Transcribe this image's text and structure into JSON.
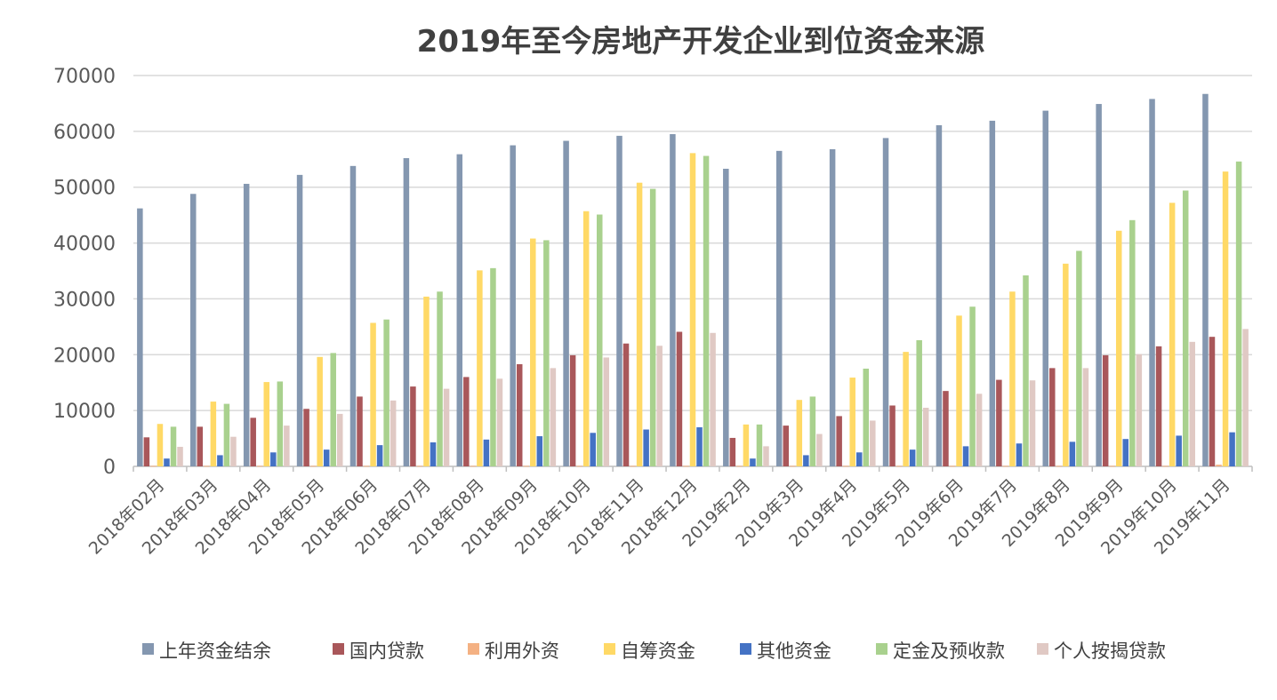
{
  "chart_data": {
    "type": "bar",
    "title": "2019年至今房地产开发企业到位资金来源",
    "xlabel": "",
    "ylabel": "",
    "ylim": [
      0,
      70000
    ],
    "yticks": [
      "0",
      "10000",
      "20000",
      "30000",
      "40000",
      "50000",
      "60000",
      "70000"
    ],
    "grid": true,
    "legend_position": "bottom",
    "categories": [
      "2018年02月",
      "2018年03月",
      "2018年04月",
      "2018年05月",
      "2018年06月",
      "2018年07月",
      "2018年08月",
      "2018年09月",
      "2018年10月",
      "2018年11月",
      "2018年12月",
      "2019年2月",
      "2019年3月",
      "2019年4月",
      "2019年5月",
      "2019年6月",
      "2019年7月",
      "2019年8月",
      "2019年9月",
      "2019年10月",
      "2019年11月"
    ],
    "series": [
      {
        "name": "上年资金结余",
        "color": "#8497B0",
        "values": [
          46200,
          48800,
          50600,
          52200,
          53800,
          55200,
          55900,
          57500,
          58300,
          59200,
          59500,
          53300,
          56500,
          56800,
          58800,
          61100,
          61900,
          63700,
          64900,
          65800,
          66700
        ]
      },
      {
        "name": "国内贷款",
        "color": "#A9575A",
        "values": [
          5200,
          7100,
          8700,
          10300,
          12500,
          14300,
          16000,
          18300,
          19900,
          22000,
          24100,
          5100,
          7300,
          9000,
          10900,
          13500,
          15500,
          17600,
          19900,
          21500,
          23200
        ]
      },
      {
        "name": "利用外资",
        "color": "#F4B183",
        "values": [
          100,
          100,
          100,
          100,
          100,
          100,
          100,
          100,
          100,
          100,
          100,
          100,
          100,
          100,
          100,
          100,
          100,
          100,
          100,
          100,
          300
        ]
      },
      {
        "name": "自筹资金",
        "color": "#FFD966",
        "values": [
          7600,
          11600,
          15100,
          19600,
          25700,
          30400,
          35100,
          40800,
          45700,
          50800,
          56100,
          7500,
          11900,
          15900,
          20500,
          27000,
          31300,
          36300,
          42200,
          47200,
          52800
        ]
      },
      {
        "name": "其他资金",
        "color": "#4472C4",
        "values": [
          1400,
          2000,
          2500,
          3000,
          3800,
          4300,
          4800,
          5400,
          6000,
          6600,
          7000,
          1400,
          2000,
          2500,
          3000,
          3600,
          4100,
          4400,
          4900,
          5500,
          6100
        ]
      },
      {
        "name": "定金及预收款",
        "color": "#A9D18E",
        "values": [
          7100,
          11200,
          15200,
          20300,
          26300,
          31300,
          35500,
          40500,
          45100,
          49700,
          55600,
          7500,
          12500,
          17500,
          22600,
          28600,
          34200,
          38600,
          44100,
          49400,
          54600
        ]
      },
      {
        "name": "个人按揭贷款",
        "color": "#E0C9C4",
        "values": [
          3500,
          5300,
          7300,
          9400,
          11800,
          13900,
          15700,
          17600,
          19500,
          21600,
          23900,
          3600,
          5800,
          8200,
          10500,
          13000,
          15400,
          17600,
          20100,
          22300,
          24600
        ]
      }
    ]
  }
}
